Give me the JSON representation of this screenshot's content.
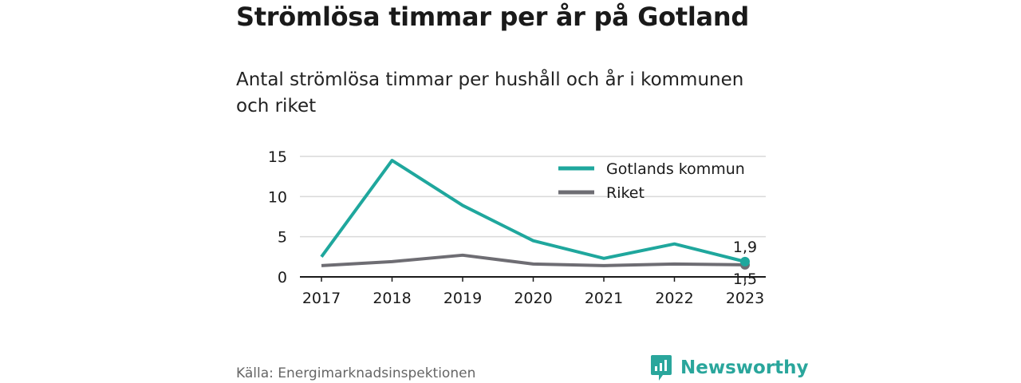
{
  "header": {
    "title": "Strömlösa timmar per år på Gotland",
    "subtitle": "Antal strömlösa timmar per hushåll och år i kommunen och riket"
  },
  "footer": {
    "source": "Källa: Energimarknadsinspektionen",
    "brand": "Newsworthy"
  },
  "colors": {
    "gotland": "#1fa79d",
    "riket": "#6e6d73",
    "grid": "#d9d9d9",
    "brand": "#2aa69c"
  },
  "chart_data": {
    "type": "line",
    "x": [
      "2017",
      "2018",
      "2019",
      "2020",
      "2021",
      "2022",
      "2023"
    ],
    "series": [
      {
        "name": "Gotlands kommun",
        "values": [
          2.5,
          14.5,
          8.9,
          4.5,
          2.3,
          4.1,
          1.9
        ]
      },
      {
        "name": "Riket",
        "values": [
          1.4,
          1.9,
          2.7,
          1.6,
          1.4,
          1.6,
          1.5
        ]
      }
    ],
    "yticks": [
      "0",
      "5",
      "10",
      "15"
    ],
    "ylim": [
      0,
      15
    ],
    "end_labels": [
      "1,9",
      "1,5"
    ],
    "grid": true,
    "legend_position": "top-right"
  }
}
